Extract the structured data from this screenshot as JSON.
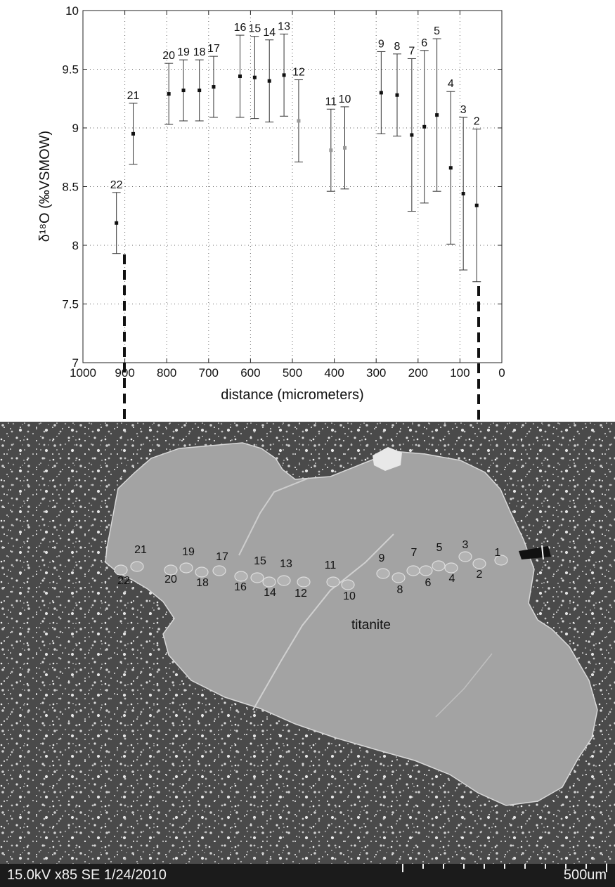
{
  "chart_data": {
    "type": "scatter",
    "ylabel": "δ¹⁸O (‰VSMOW)",
    "xlabel": "distance (micrometers)",
    "xlim": [
      1000,
      0
    ],
    "ylim": [
      7,
      10
    ],
    "x_reversed": true,
    "xticks": [
      1000,
      900,
      800,
      700,
      600,
      500,
      400,
      300,
      200,
      100,
      0
    ],
    "yticks": [
      7,
      7.5,
      8,
      8.5,
      9,
      9.5,
      10
    ],
    "grid": "dotted",
    "error_bars": true,
    "points": [
      {
        "label": "22",
        "x": 920,
        "y": 8.19,
        "yerr": 0.26
      },
      {
        "label": "21",
        "x": 880,
        "y": 8.95,
        "yerr": 0.26
      },
      {
        "label": "20",
        "x": 795,
        "y": 9.29,
        "yerr": 0.26
      },
      {
        "label": "19",
        "x": 760,
        "y": 9.32,
        "yerr": 0.26
      },
      {
        "label": "18",
        "x": 722,
        "y": 9.32,
        "yerr": 0.26
      },
      {
        "label": "17",
        "x": 688,
        "y": 9.35,
        "yerr": 0.26
      },
      {
        "label": "16",
        "x": 625,
        "y": 9.44,
        "yerr": 0.35
      },
      {
        "label": "15",
        "x": 590,
        "y": 9.43,
        "yerr": 0.35
      },
      {
        "label": "14",
        "x": 555,
        "y": 9.4,
        "yerr": 0.35
      },
      {
        "label": "13",
        "x": 520,
        "y": 9.45,
        "yerr": 0.35
      },
      {
        "label": "12",
        "x": 485,
        "y": 9.06,
        "yerr": 0.35
      },
      {
        "label": "11",
        "x": 408,
        "y": 8.81,
        "yerr": 0.35
      },
      {
        "label": "10",
        "x": 375,
        "y": 8.83,
        "yerr": 0.35
      },
      {
        "label": "9",
        "x": 288,
        "y": 9.3,
        "yerr": 0.35
      },
      {
        "label": "8",
        "x": 250,
        "y": 9.28,
        "yerr": 0.35
      },
      {
        "label": "7",
        "x": 215,
        "y": 8.94,
        "yerr": 0.65
      },
      {
        "label": "6",
        "x": 185,
        "y": 9.01,
        "yerr": 0.65
      },
      {
        "label": "5",
        "x": 155,
        "y": 9.11,
        "yerr": 0.65
      },
      {
        "label": "4",
        "x": 122,
        "y": 8.66,
        "yerr": 0.65
      },
      {
        "label": "3",
        "x": 92,
        "y": 8.44,
        "yerr": 0.65
      },
      {
        "label": "2",
        "x": 60,
        "y": 8.34,
        "yerr": 0.65
      }
    ]
  },
  "sem": {
    "mineral_label": "titanite",
    "info_text": "15.0kV x85 SE 1/24/2010",
    "scale_label": "500um",
    "spot_labels": [
      "1",
      "2",
      "3",
      "4",
      "5",
      "6",
      "7",
      "8",
      "9",
      "10",
      "11",
      "12",
      "13",
      "14",
      "15",
      "16",
      "17",
      "18",
      "19",
      "20",
      "21",
      "22"
    ]
  },
  "colors": {
    "matrix": "#4a4a4a",
    "grain": "#a3a3a3",
    "marker": "#111111",
    "info_bar": "#1b1b1b"
  }
}
